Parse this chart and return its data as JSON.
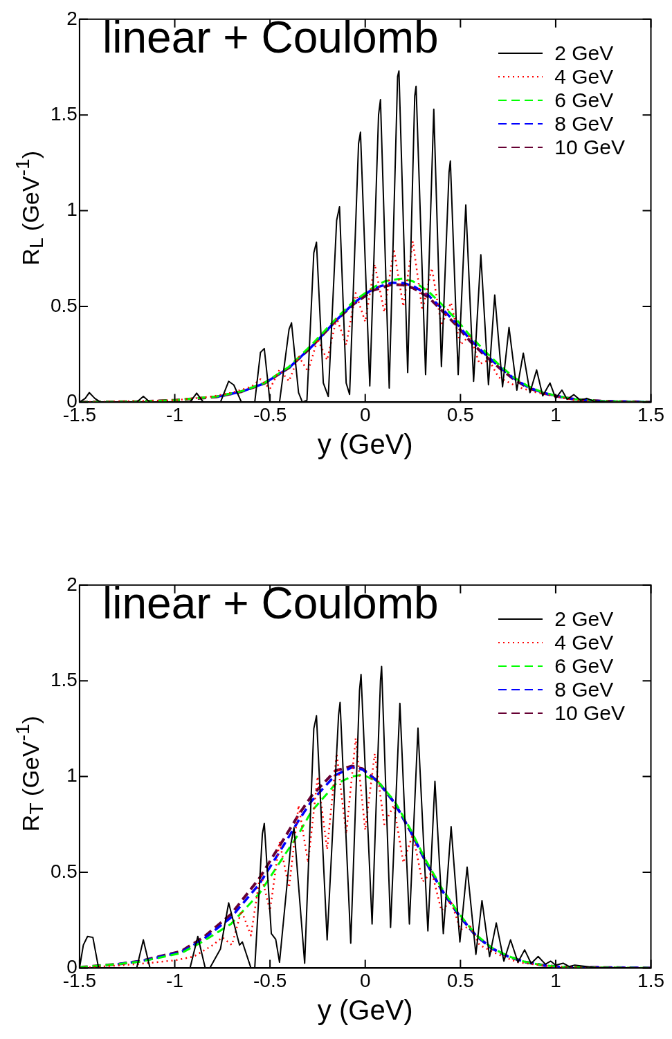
{
  "chart_data": [
    {
      "type": "line",
      "title": "linear + Coulomb",
      "xlabel": "y (GeV)",
      "ylabel": "R$_{L}$ (GeV$^{-1}$)",
      "xlim": [
        -1.5,
        1.5
      ],
      "xticks": [
        -1.5,
        -1,
        -0.5,
        0,
        0.5,
        1,
        1.5
      ],
      "ylim": [
        0,
        2
      ],
      "yticks": [
        0,
        0.5,
        1,
        1.5,
        2
      ],
      "grid": false,
      "legend": "top right",
      "series": [
        {
          "name": "2 GeV",
          "color": "#000000",
          "line_style": "solid",
          "x": [
            -1.5,
            -1.47,
            -1.449,
            -1.42,
            -1.39,
            -1.2,
            -1.165,
            -1.13,
            -0.92,
            -0.885,
            -0.85,
            -0.76,
            -0.717,
            -0.69,
            -0.65,
            -0.58,
            -0.55,
            -0.53,
            -0.5,
            -0.45,
            -0.4,
            -0.387,
            -0.35,
            -0.33,
            -0.306,
            -0.27,
            -0.256,
            -0.22,
            -0.194,
            -0.15,
            -0.135,
            -0.1,
            -0.082,
            -0.035,
            -0.025,
            0.024,
            0.07,
            0.08,
            0.126,
            0.17,
            0.177,
            0.223,
            0.26,
            0.267,
            0.317,
            0.36,
            0.4,
            0.44,
            0.447,
            0.488,
            0.528,
            0.569,
            0.607,
            0.647,
            0.68,
            0.721,
            0.755,
            0.796,
            0.83,
            0.865,
            0.9,
            0.932,
            0.97,
            1.0,
            1.033,
            1.06,
            1.095,
            1.13,
            1.163,
            1.2,
            1.3,
            1.5
          ],
          "values": [
            0,
            0.02,
            0.05,
            0.02,
            0,
            0,
            0.03,
            0,
            0,
            0.047,
            0,
            0,
            0.109,
            0.09,
            0,
            0,
            0.26,
            0.28,
            0,
            0,
            0.38,
            0.414,
            0.05,
            0,
            0.01,
            0.78,
            0.835,
            0.1,
            0.03,
            0.95,
            1.02,
            0.1,
            0.04,
            1.35,
            1.41,
            0.085,
            1.5,
            1.58,
            0.074,
            1.7,
            1.73,
            0.155,
            1.6,
            1.65,
            0.144,
            1.53,
            0.186,
            1.2,
            1.26,
            0.144,
            1.03,
            0.109,
            0.77,
            0.091,
            0.56,
            0.08,
            0.39,
            0.063,
            0.256,
            0.05,
            0.168,
            0.033,
            0.1,
            0.02,
            0.063,
            0.015,
            0.039,
            0.01,
            0.02,
            0.005,
            0,
            0
          ]
        },
        {
          "name": "4 GeV",
          "color": "#ff0000",
          "line_style": "dotted",
          "x": [
            -1.5,
            -1.0,
            -0.8,
            -0.7,
            -0.6,
            -0.55,
            -0.5,
            -0.45,
            -0.4,
            -0.35,
            -0.3,
            -0.25,
            -0.2,
            -0.15,
            -0.1,
            -0.05,
            0,
            0.05,
            0.1,
            0.15,
            0.2,
            0.25,
            0.3,
            0.35,
            0.4,
            0.45,
            0.5,
            0.55,
            0.6,
            0.65,
            0.7,
            0.8,
            0.9,
            1.0,
            1.1,
            1.25,
            1.5
          ],
          "values": [
            0,
            0.01,
            0.03,
            0.05,
            0.08,
            0.12,
            0.07,
            0.17,
            0.11,
            0.24,
            0.16,
            0.33,
            0.22,
            0.44,
            0.3,
            0.57,
            0.42,
            0.72,
            0.47,
            0.8,
            0.5,
            0.84,
            0.48,
            0.7,
            0.4,
            0.52,
            0.3,
            0.35,
            0.2,
            0.22,
            0.13,
            0.08,
            0.05,
            0.03,
            0.01,
            0.003,
            0
          ]
        },
        {
          "name": "6 GeV",
          "color": "#00ff00",
          "line_style": "dashed",
          "x": [
            -1.5,
            -1.2,
            -1.0,
            -0.779,
            -0.65,
            -0.53,
            -0.4,
            -0.281,
            -0.15,
            -0.057,
            0.043,
            0.1,
            0.15,
            0.2,
            0.253,
            0.33,
            0.403,
            0.48,
            0.553,
            0.63,
            0.703,
            0.78,
            0.852,
            0.93,
            1.0,
            1.1,
            1.25,
            1.5
          ],
          "values": [
            0,
            0.003,
            0.01,
            0.03,
            0.057,
            0.1,
            0.185,
            0.3,
            0.44,
            0.53,
            0.6,
            0.63,
            0.64,
            0.645,
            0.63,
            0.58,
            0.51,
            0.43,
            0.345,
            0.265,
            0.195,
            0.13,
            0.085,
            0.052,
            0.034,
            0.015,
            0.005,
            0
          ]
        },
        {
          "name": "8 GeV",
          "color": "#0000ff",
          "line_style": "dashed",
          "x": [
            -0.779,
            -0.65,
            -0.53,
            -0.4,
            -0.281,
            -0.15,
            -0.057,
            0.043,
            0.141,
            0.2,
            0.253,
            0.33,
            0.403,
            0.48,
            0.553,
            0.63,
            0.703,
            0.78,
            0.852,
            0.93,
            1.0,
            1.1,
            1.25,
            1.5
          ],
          "values": [
            0.028,
            0.055,
            0.098,
            0.18,
            0.29,
            0.43,
            0.52,
            0.594,
            0.624,
            0.622,
            0.606,
            0.56,
            0.489,
            0.41,
            0.326,
            0.25,
            0.186,
            0.125,
            0.08,
            0.05,
            0.033,
            0.015,
            0.005,
            0
          ]
        },
        {
          "name": "10 GeV",
          "color": "#660033",
          "line_style": "dashed",
          "x": [
            -1.5,
            -1.2,
            -1.0,
            -0.779,
            -0.65,
            -0.53,
            -0.4,
            -0.281,
            -0.15,
            -0.057,
            0.043,
            0.141,
            0.2,
            0.253,
            0.33,
            0.403,
            0.48,
            0.553,
            0.63,
            0.703,
            0.78,
            0.852,
            0.93,
            1.0,
            1.1,
            1.25,
            1.5
          ],
          "values": [
            0,
            0.003,
            0.01,
            0.028,
            0.055,
            0.098,
            0.18,
            0.29,
            0.43,
            0.515,
            0.585,
            0.615,
            0.612,
            0.595,
            0.55,
            0.478,
            0.4,
            0.316,
            0.242,
            0.18,
            0.12,
            0.077,
            0.048,
            0.032,
            0.015,
            0.005,
            0
          ]
        }
      ]
    },
    {
      "type": "line",
      "title": "linear + Coulomb",
      "xlabel": "y (GeV)",
      "ylabel": "R$_{T}$ (GeV$^{-1}$)",
      "xlim": [
        -1.5,
        1.5
      ],
      "xticks": [
        -1.5,
        -1,
        -0.5,
        0,
        0.5,
        1,
        1.5
      ],
      "ylim": [
        0,
        2
      ],
      "yticks": [
        0,
        0.5,
        1,
        1.5,
        2
      ],
      "grid": false,
      "legend": "top right",
      "series": [
        {
          "name": "2 GeV",
          "color": "#000000",
          "line_style": "solid",
          "x": [
            -1.5,
            -1.48,
            -1.458,
            -1.43,
            -1.4,
            -1.2,
            -1.165,
            -1.13,
            -0.92,
            -0.879,
            -0.84,
            -0.816,
            -0.76,
            -0.717,
            -0.66,
            -0.645,
            -0.6,
            -0.58,
            -0.54,
            -0.53,
            -0.493,
            -0.47,
            -0.45,
            -0.39,
            -0.374,
            -0.318,
            -0.27,
            -0.256,
            -0.2,
            -0.14,
            -0.132,
            -0.076,
            -0.03,
            -0.022,
            0.036,
            0.08,
            0.086,
            0.133,
            0.182,
            0.232,
            0.277,
            0.329,
            0.366,
            0.41,
            0.451,
            0.497,
            0.535,
            0.581,
            0.613,
            0.653,
            0.688,
            0.728,
            0.763,
            0.802,
            0.837,
            0.871,
            0.908,
            0.946,
            0.974,
            1.0,
            1.039,
            1.07,
            1.1,
            1.2,
            1.5
          ],
          "values": [
            0,
            0.12,
            0.165,
            0.16,
            0,
            0,
            0.147,
            0,
            0,
            0.165,
            0,
            0,
            0.1,
            0.34,
            0.12,
            0.136,
            0,
            0,
            0.7,
            0.755,
            0.18,
            0.15,
            0.03,
            0.65,
            0.733,
            0.025,
            1.25,
            1.317,
            0.147,
            1.32,
            1.387,
            0.13,
            1.45,
            1.533,
            0.23,
            1.5,
            1.575,
            0.212,
            1.382,
            0.23,
            1.253,
            0.194,
            0.975,
            0.18,
            0.738,
            0.136,
            0.527,
            0.071,
            0.352,
            0.06,
            0.235,
            0.036,
            0.147,
            0.03,
            0.095,
            0.024,
            0.06,
            0.02,
            0.036,
            0.015,
            0.025,
            0.008,
            0.015,
            0.003,
            0
          ]
        },
        {
          "name": "4 GeV",
          "color": "#ff0000",
          "line_style": "dotted",
          "x": [
            -1.5,
            -1.2,
            -1.0,
            -0.9,
            -0.8,
            -0.75,
            -0.7,
            -0.65,
            -0.6,
            -0.55,
            -0.5,
            -0.45,
            -0.4,
            -0.35,
            -0.3,
            -0.25,
            -0.2,
            -0.15,
            -0.1,
            -0.05,
            0,
            0.05,
            0.1,
            0.15,
            0.2,
            0.25,
            0.3,
            0.35,
            0.4,
            0.45,
            0.5,
            0.55,
            0.6,
            0.7,
            0.8,
            1.0,
            1.5
          ],
          "values": [
            0,
            0.02,
            0.04,
            0.06,
            0.12,
            0.16,
            0.12,
            0.3,
            0.17,
            0.5,
            0.3,
            0.66,
            0.42,
            0.85,
            0.55,
            1.0,
            0.62,
            1.12,
            0.7,
            1.2,
            0.72,
            1.12,
            0.75,
            0.85,
            0.55,
            0.7,
            0.45,
            0.5,
            0.3,
            0.35,
            0.2,
            0.22,
            0.12,
            0.07,
            0.03,
            0.005,
            0
          ]
        },
        {
          "name": "6 GeV",
          "color": "#00ff00",
          "line_style": "dashed",
          "x": [
            -1.5,
            -1.486,
            -1.3,
            -1.177,
            -0.966,
            -0.85,
            -0.705,
            -0.555,
            -0.43,
            -0.35,
            -0.281,
            -0.157,
            -0.07,
            -0.013,
            0.07,
            0.155,
            0.24,
            0.317,
            0.4,
            0.491,
            0.58,
            0.666,
            0.75,
            0.84,
            0.93,
            1.025,
            1.5
          ],
          "values": [
            0,
            0.005,
            0.02,
            0.034,
            0.078,
            0.14,
            0.23,
            0.39,
            0.58,
            0.7,
            0.82,
            0.96,
            1.0,
            1.01,
            0.97,
            0.87,
            0.72,
            0.565,
            0.42,
            0.285,
            0.175,
            0.105,
            0.062,
            0.032,
            0.015,
            0.005,
            0
          ]
        },
        {
          "name": "8 GeV",
          "color": "#0000ff",
          "line_style": "dashed",
          "x": [
            -1.3,
            -1.177,
            -0.966,
            -0.85,
            -0.705,
            -0.555,
            -0.43,
            -0.35,
            -0.281,
            -0.157,
            -0.07,
            -0.013,
            0.07,
            0.155,
            0.24,
            0.317,
            0.4,
            0.491,
            0.58,
            0.666,
            0.75,
            0.84,
            0.93,
            1.025,
            1.5
          ],
          "values": [
            0.02,
            0.036,
            0.083,
            0.15,
            0.264,
            0.44,
            0.638,
            0.77,
            0.873,
            1.007,
            1.048,
            1.036,
            0.97,
            0.861,
            0.71,
            0.557,
            0.41,
            0.277,
            0.17,
            0.102,
            0.06,
            0.031,
            0.015,
            0.005,
            0
          ]
        },
        {
          "name": "10 GeV",
          "color": "#660033",
          "line_style": "dashed",
          "x": [
            -1.5,
            -1.486,
            -1.3,
            -1.177,
            -0.966,
            -0.85,
            -0.705,
            -0.555,
            -0.43,
            -0.35,
            -0.281,
            -0.157,
            -0.07,
            -0.013,
            0.07,
            0.155,
            0.24,
            0.317,
            0.4,
            0.491,
            0.58,
            0.666,
            0.75,
            0.84,
            0.93,
            1.025,
            1.5
          ],
          "values": [
            0,
            0.005,
            0.02,
            0.037,
            0.088,
            0.16,
            0.28,
            0.47,
            0.67,
            0.8,
            0.9,
            1.03,
            1.055,
            1.04,
            0.97,
            0.861,
            0.71,
            0.557,
            0.41,
            0.277,
            0.17,
            0.102,
            0.06,
            0.031,
            0.015,
            0.005,
            0
          ]
        }
      ]
    }
  ]
}
